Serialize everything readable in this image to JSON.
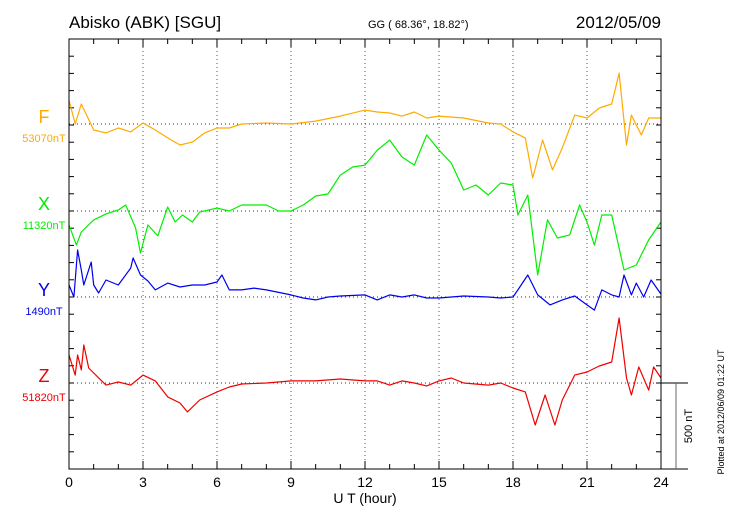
{
  "header": {
    "station": "Abisko (ABK)  [SGU]",
    "coords": "GG ( 68.36°,  18.82°)",
    "date": "2012/05/09"
  },
  "footer": {
    "plotted": "Plotted at 2012/06/09 01:22 UT"
  },
  "chart_data": {
    "type": "line",
    "title": "Abisko (ABK)  [SGU]",
    "xlabel": "U T (hour)",
    "ylabel": "",
    "xlim": [
      0,
      24
    ],
    "xticks": [
      "0",
      "3",
      "6",
      "9",
      "12",
      "15",
      "18",
      "21",
      "24"
    ],
    "grid": "dotted at every 3 hours and at each component baseline",
    "scale_bar": {
      "label": "500 nT",
      "value_nT": 500
    },
    "nT_per_minor_tick": 100,
    "series": [
      {
        "name": "F",
        "baseline_label": "53070nT",
        "baseline_nT": 53070,
        "color": "#ffaa00",
        "x": [
          0,
          0.25,
          0.5,
          1,
          1.5,
          2,
          2.5,
          3,
          3.5,
          4,
          4.5,
          5,
          5.5,
          6,
          6.5,
          7,
          8,
          9,
          10,
          11,
          12,
          12.5,
          13,
          13.5,
          14,
          14.5,
          15,
          16,
          17,
          17.5,
          18,
          18.5,
          18.8,
          19.2,
          19.6,
          20,
          20.5,
          21,
          21.5,
          22,
          22.3,
          22.6,
          22.8,
          23.2,
          23.5,
          24
        ],
        "y": [
          139,
          0,
          116,
          -35,
          -52,
          -23,
          -46,
          6,
          -35,
          -81,
          -122,
          -105,
          -52,
          -23,
          -23,
          0,
          6,
          0,
          17,
          46,
          81,
          70,
          64,
          46,
          70,
          35,
          46,
          35,
          6,
          0,
          -46,
          -81,
          -314,
          -93,
          -267,
          -139,
          52,
          35,
          93,
          116,
          296,
          -122,
          52,
          -64,
          35,
          35
        ]
      },
      {
        "name": "X",
        "baseline_label": "11320nT",
        "baseline_nT": 11320,
        "color": "#00ee00",
        "x": [
          0,
          0.3,
          0.5,
          1,
          1.5,
          2,
          2.3,
          2.7,
          2.9,
          3.2,
          3.6,
          4,
          4.3,
          4.6,
          5,
          5.3,
          6,
          6.5,
          7,
          8,
          8.5,
          9,
          9.5,
          10,
          10.5,
          11,
          11.5,
          12,
          12.5,
          13,
          13.5,
          14,
          14.5,
          15,
          15.5,
          16,
          16.5,
          17,
          17.5,
          18,
          18.2,
          18.6,
          19,
          19.4,
          19.8,
          20.3,
          20.7,
          21,
          21.3,
          21.6,
          22,
          22.5,
          23,
          23.5,
          24
        ],
        "y": [
          -81,
          -198,
          -122,
          -52,
          -17,
          6,
          35,
          -99,
          -244,
          -81,
          -145,
          23,
          -64,
          -23,
          -64,
          -6,
          17,
          0,
          35,
          35,
          0,
          0,
          35,
          87,
          99,
          209,
          256,
          267,
          354,
          412,
          314,
          267,
          442,
          354,
          279,
          122,
          151,
          93,
          163,
          151,
          -23,
          93,
          -372,
          -52,
          -157,
          -139,
          35,
          -64,
          -198,
          -23,
          -23,
          -343,
          -314,
          -168,
          -64
        ]
      },
      {
        "name": "Y",
        "baseline_label": "1490nT",
        "baseline_nT": 1490,
        "color": "#0000ee",
        "x": [
          0,
          0.2,
          0.35,
          0.5,
          0.6,
          0.9,
          1,
          1.2,
          1.5,
          2,
          2.5,
          2.6,
          2.9,
          3.2,
          3.5,
          4,
          4.5,
          5,
          5.5,
          6,
          6.2,
          6.5,
          7,
          7.5,
          8,
          9,
          9.5,
          10,
          10.5,
          11,
          12,
          12.5,
          13,
          13.5,
          14,
          14.5,
          15,
          16,
          17,
          17.5,
          18,
          18.2,
          18.6,
          19,
          19.5,
          20,
          20.5,
          21,
          21.3,
          21.6,
          22,
          22.3,
          22.5,
          22.8,
          23,
          23.3,
          23.6,
          24
        ],
        "y": [
          70,
          0,
          273,
          157,
          70,
          203,
          70,
          23,
          99,
          70,
          168,
          227,
          128,
          93,
          41,
          81,
          58,
          70,
          70,
          87,
          128,
          41,
          41,
          52,
          41,
          12,
          -6,
          -17,
          0,
          6,
          12,
          -17,
          12,
          0,
          12,
          -6,
          -6,
          6,
          0,
          -6,
          0,
          41,
          128,
          12,
          -46,
          -17,
          6,
          -46,
          -76,
          41,
          12,
          0,
          128,
          12,
          81,
          0,
          99,
          17
        ]
      },
      {
        "name": "Z",
        "baseline_label": "51820nT",
        "baseline_nT": 51820,
        "color": "#ee0000",
        "x": [
          0,
          0.25,
          0.35,
          0.5,
          0.6,
          0.8,
          1,
          1.5,
          2,
          2.5,
          3,
          3.5,
          4,
          4.5,
          4.8,
          5.3,
          6,
          6.5,
          7,
          8,
          9,
          10,
          11,
          12,
          12.5,
          13,
          13.5,
          14,
          14.5,
          15,
          15.5,
          16,
          17,
          17.5,
          18,
          18.5,
          18.9,
          19.3,
          19.7,
          20,
          20.5,
          21,
          21.5,
          22,
          22.3,
          22.6,
          22.8,
          23.1,
          23.5,
          23.7,
          24
        ],
        "y": [
          163,
          46,
          163,
          76,
          221,
          87,
          58,
          -12,
          6,
          -12,
          46,
          12,
          -81,
          -116,
          -168,
          -99,
          -52,
          -23,
          -6,
          0,
          12,
          12,
          23,
          12,
          12,
          -12,
          12,
          0,
          -17,
          12,
          29,
          0,
          -12,
          0,
          -29,
          -52,
          -244,
          -70,
          -244,
          -99,
          46,
          64,
          99,
          122,
          378,
          29,
          -70,
          93,
          -41,
          93,
          29
        ]
      }
    ]
  }
}
